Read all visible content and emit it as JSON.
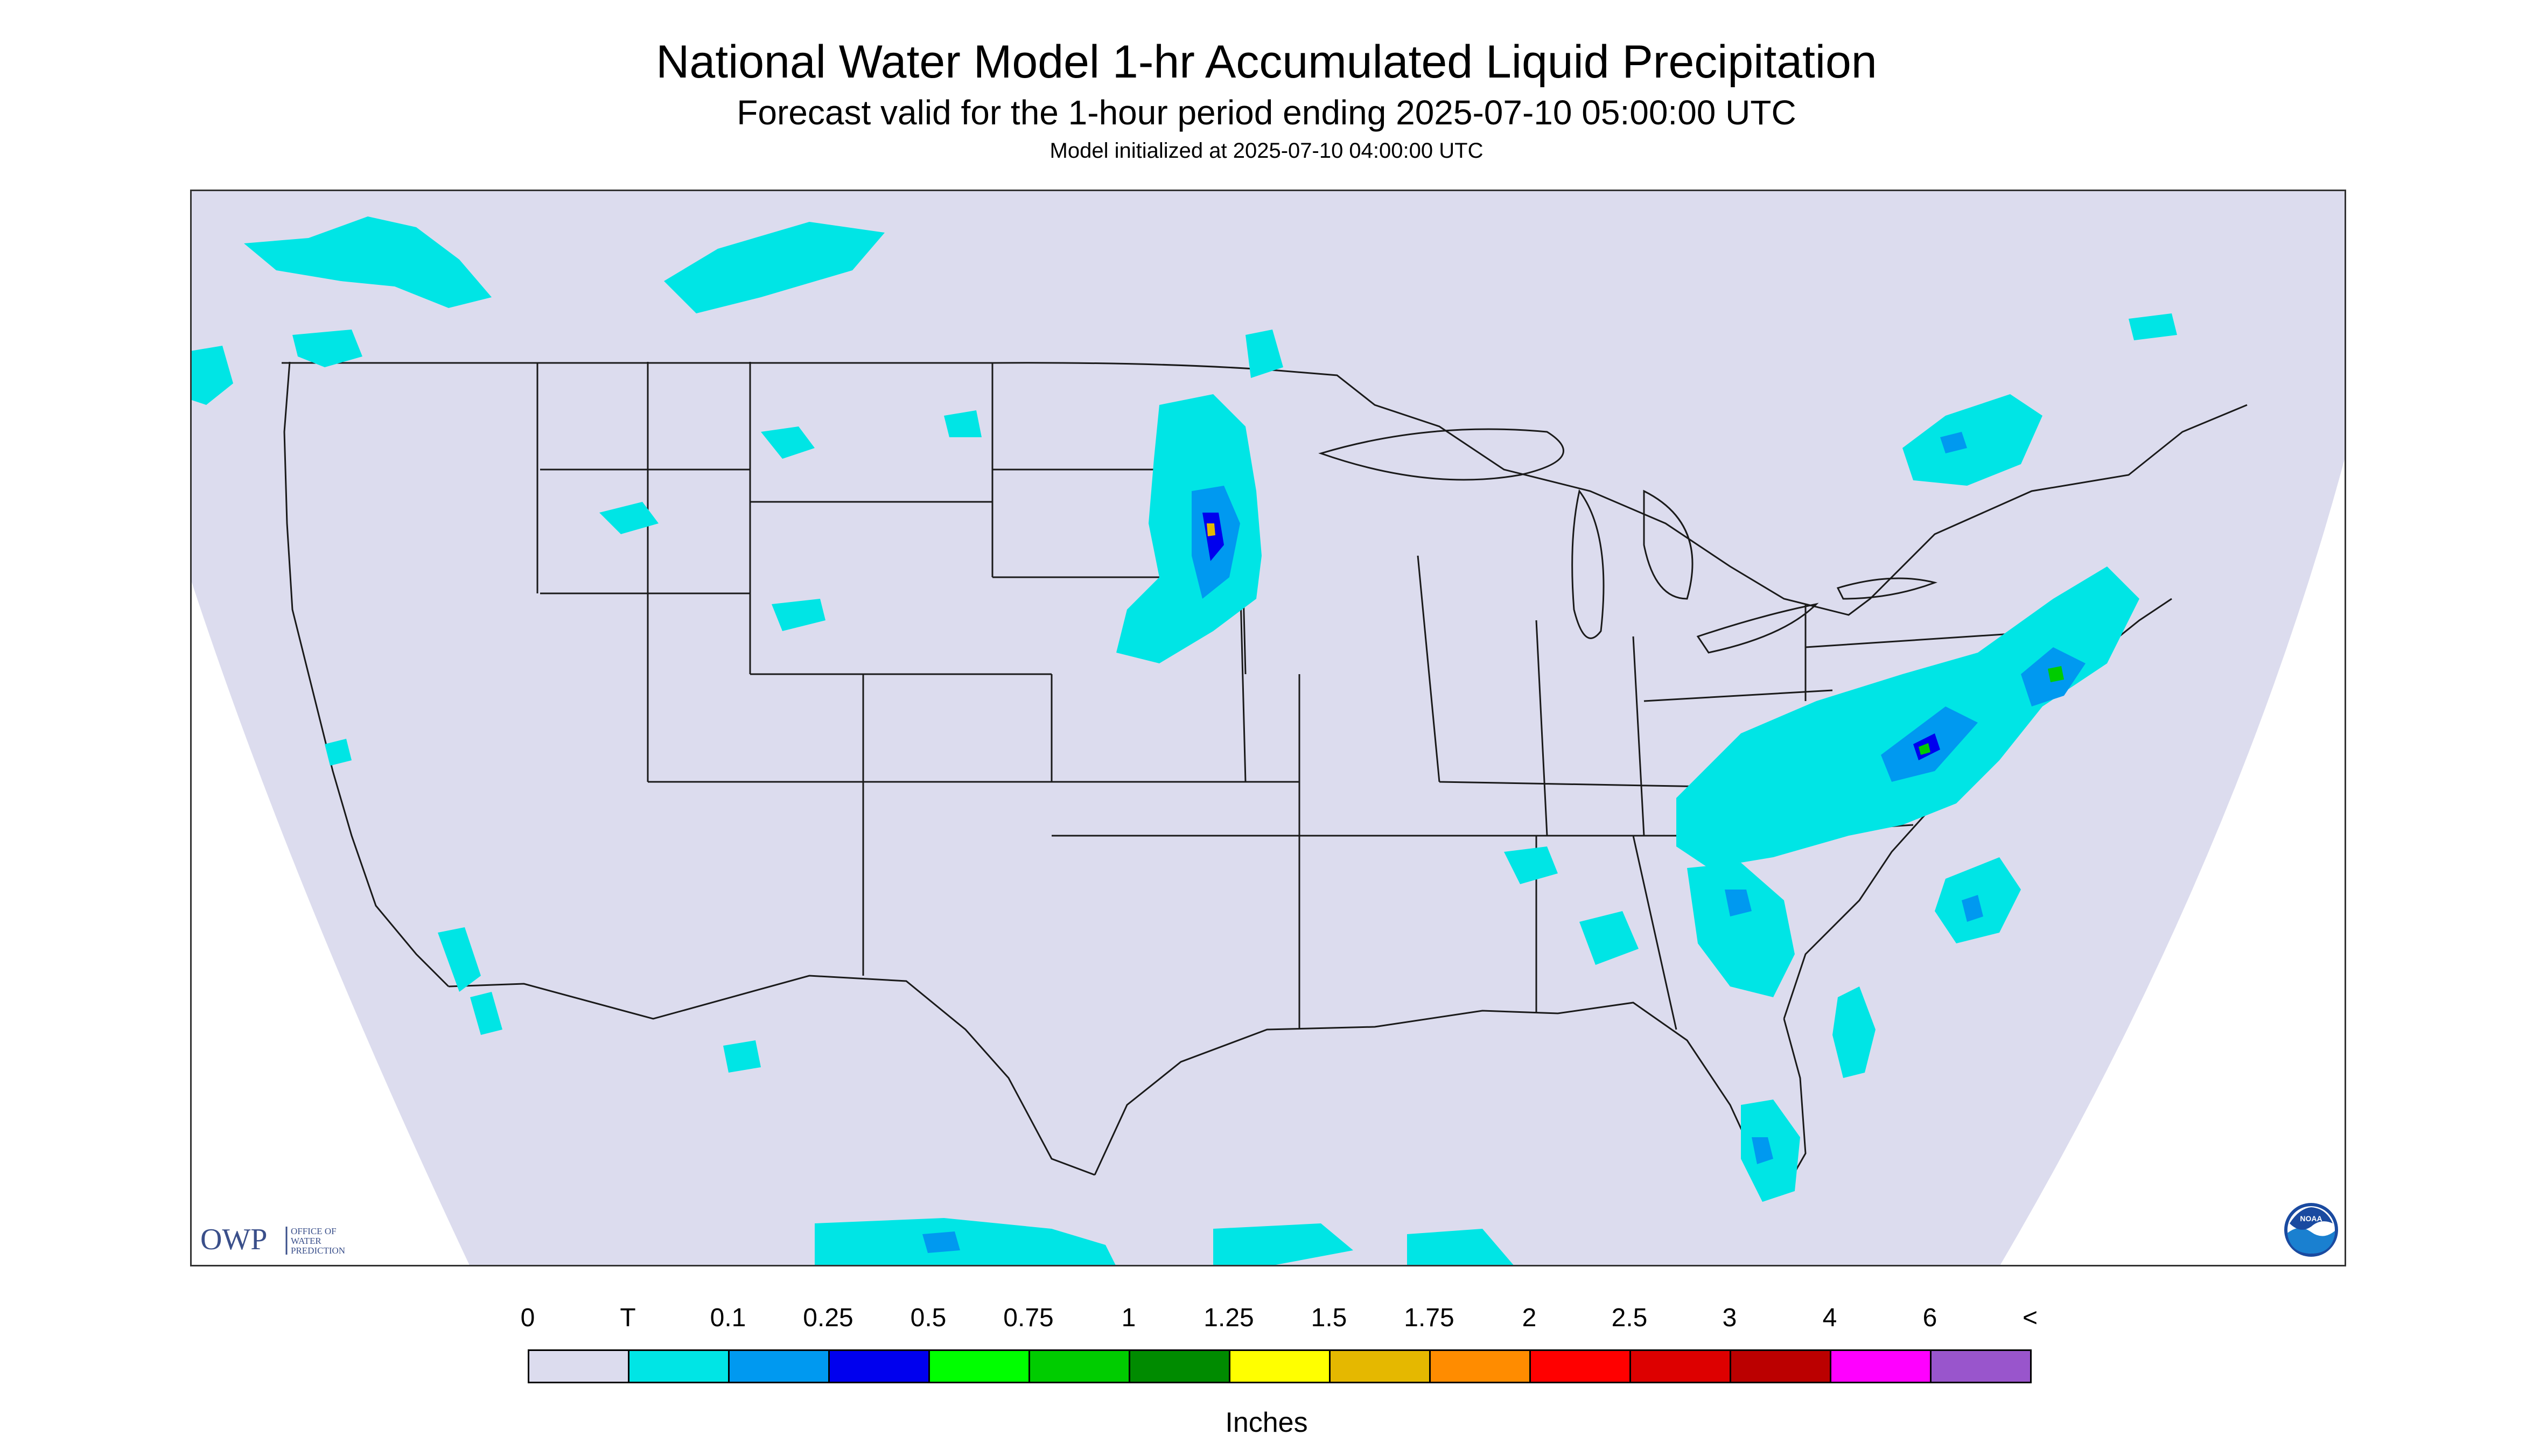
{
  "header": {
    "title": "National Water Model 1-hr Accumulated Liquid Precipitation",
    "subtitle": "Forecast valid for the 1-hour period ending 2025-07-10 05:00:00 UTC",
    "init": "Model initialized at 2025-07-10 04:00:00 UTC"
  },
  "map": {
    "background_color": "#dcdcee",
    "outside_color": "#ffffff",
    "boundary_color": "#1a1a1a"
  },
  "legend": {
    "tick_labels": [
      "0",
      "T",
      "0.1",
      "0.25",
      "0.5",
      "0.75",
      "1",
      "1.25",
      "1.5",
      "1.75",
      "2",
      "2.5",
      "3",
      "4",
      "6",
      "<"
    ],
    "colors": [
      "#dcdcee",
      "#00e5e5",
      "#0099f0",
      "#0000ee",
      "#00ff00",
      "#00cc00",
      "#008b00",
      "#ffff00",
      "#e5b800",
      "#ff8c00",
      "#ff0000",
      "#dd0000",
      "#bb0000",
      "#ff00ff",
      "#9955cc"
    ],
    "units": "Inches"
  },
  "logos": {
    "owp_letters": "OWP",
    "owp_text": [
      "OFFICE OF",
      "WATER",
      "PREDICTION"
    ],
    "noaa_text": "NOAA"
  }
}
